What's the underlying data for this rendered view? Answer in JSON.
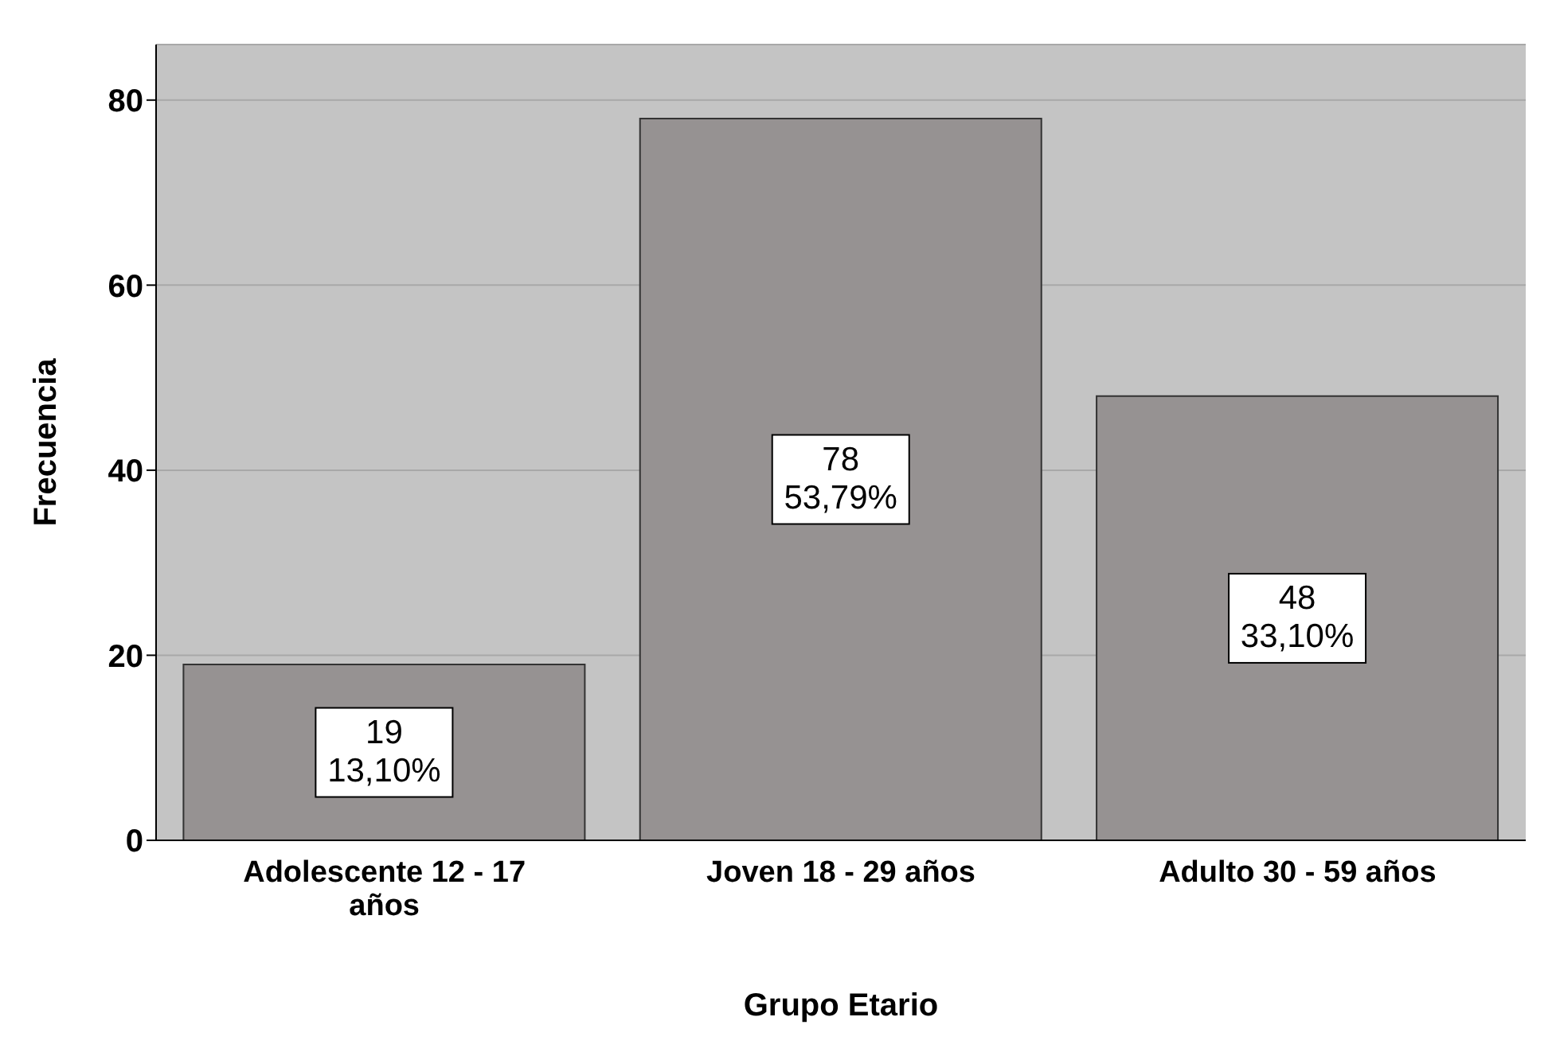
{
  "chart_data": {
    "type": "bar",
    "xlabel": "Grupo Etario",
    "ylabel": "Frecuencia",
    "categories": [
      "Adolescente 12 - 17 años",
      "Joven 18 - 29 años",
      "Adulto 30 - 59 años"
    ],
    "values": [
      19,
      78,
      48
    ],
    "value_labels": [
      "19\n13,10%",
      "78\n53,79%",
      "48\n33,10%"
    ],
    "color": "#969292",
    "ylim": [
      0,
      86
    ],
    "yticks": [
      0,
      20,
      40,
      60,
      80
    ],
    "grid": "y"
  }
}
